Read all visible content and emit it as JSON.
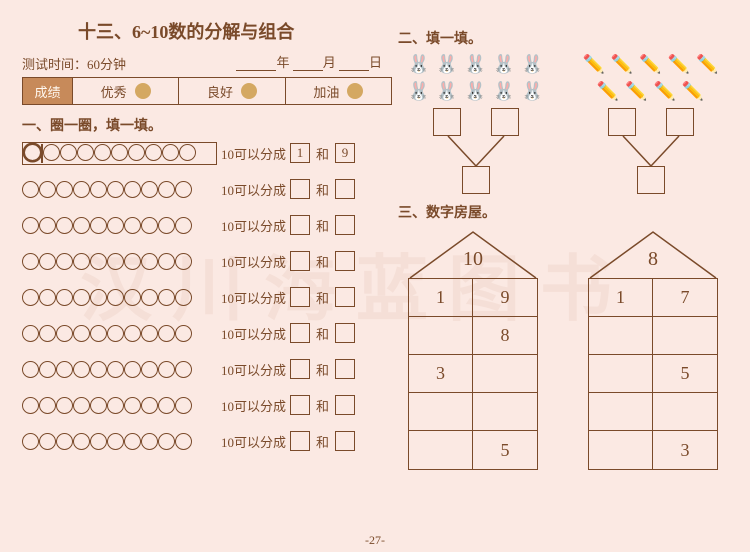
{
  "colors": {
    "ink": "#7a4a2a",
    "bg": "#fbe9e3",
    "scoreLabelBg": "#c78a5a"
  },
  "title": "十三、6~10数的分解与组合",
  "testTime": "测试时间：60分钟",
  "dateLabels": {
    "year": "年",
    "month": "月",
    "day": "日"
  },
  "score": {
    "label": "成绩",
    "opts": [
      "优秀",
      "良好",
      "加油"
    ]
  },
  "section1": {
    "title": "一、圈一圈，填一填。",
    "rows": [
      {
        "boxed": true,
        "grouped": 1,
        "a": "1",
        "b": "9"
      },
      {
        "a": "",
        "b": ""
      },
      {
        "a": "",
        "b": ""
      },
      {
        "a": "",
        "b": ""
      },
      {
        "a": "",
        "b": ""
      },
      {
        "a": "",
        "b": ""
      },
      {
        "a": "",
        "b": ""
      },
      {
        "a": "",
        "b": ""
      },
      {
        "a": "",
        "b": ""
      }
    ],
    "canSplit": "10可以分成",
    "and": "和"
  },
  "section2": {
    "title": "二、填一填。",
    "left": {
      "icon": "🐰",
      "count": 10
    },
    "right": {
      "icon": "✏️",
      "count": 9
    }
  },
  "section3": {
    "title": "三、数字房屋。",
    "houses": [
      {
        "roof": "10",
        "rows": [
          [
            "1",
            "9"
          ],
          [
            "",
            "8"
          ],
          [
            "3",
            ""
          ],
          [
            "",
            ""
          ],
          [
            "",
            "5"
          ]
        ]
      },
      {
        "roof": "8",
        "rows": [
          [
            "1",
            "7"
          ],
          [
            "",
            ""
          ],
          [
            "",
            "5"
          ],
          [
            "",
            ""
          ],
          [
            "",
            "3"
          ]
        ]
      }
    ]
  },
  "pageNum": "-27-",
  "watermark": "汉川海蓝图书"
}
